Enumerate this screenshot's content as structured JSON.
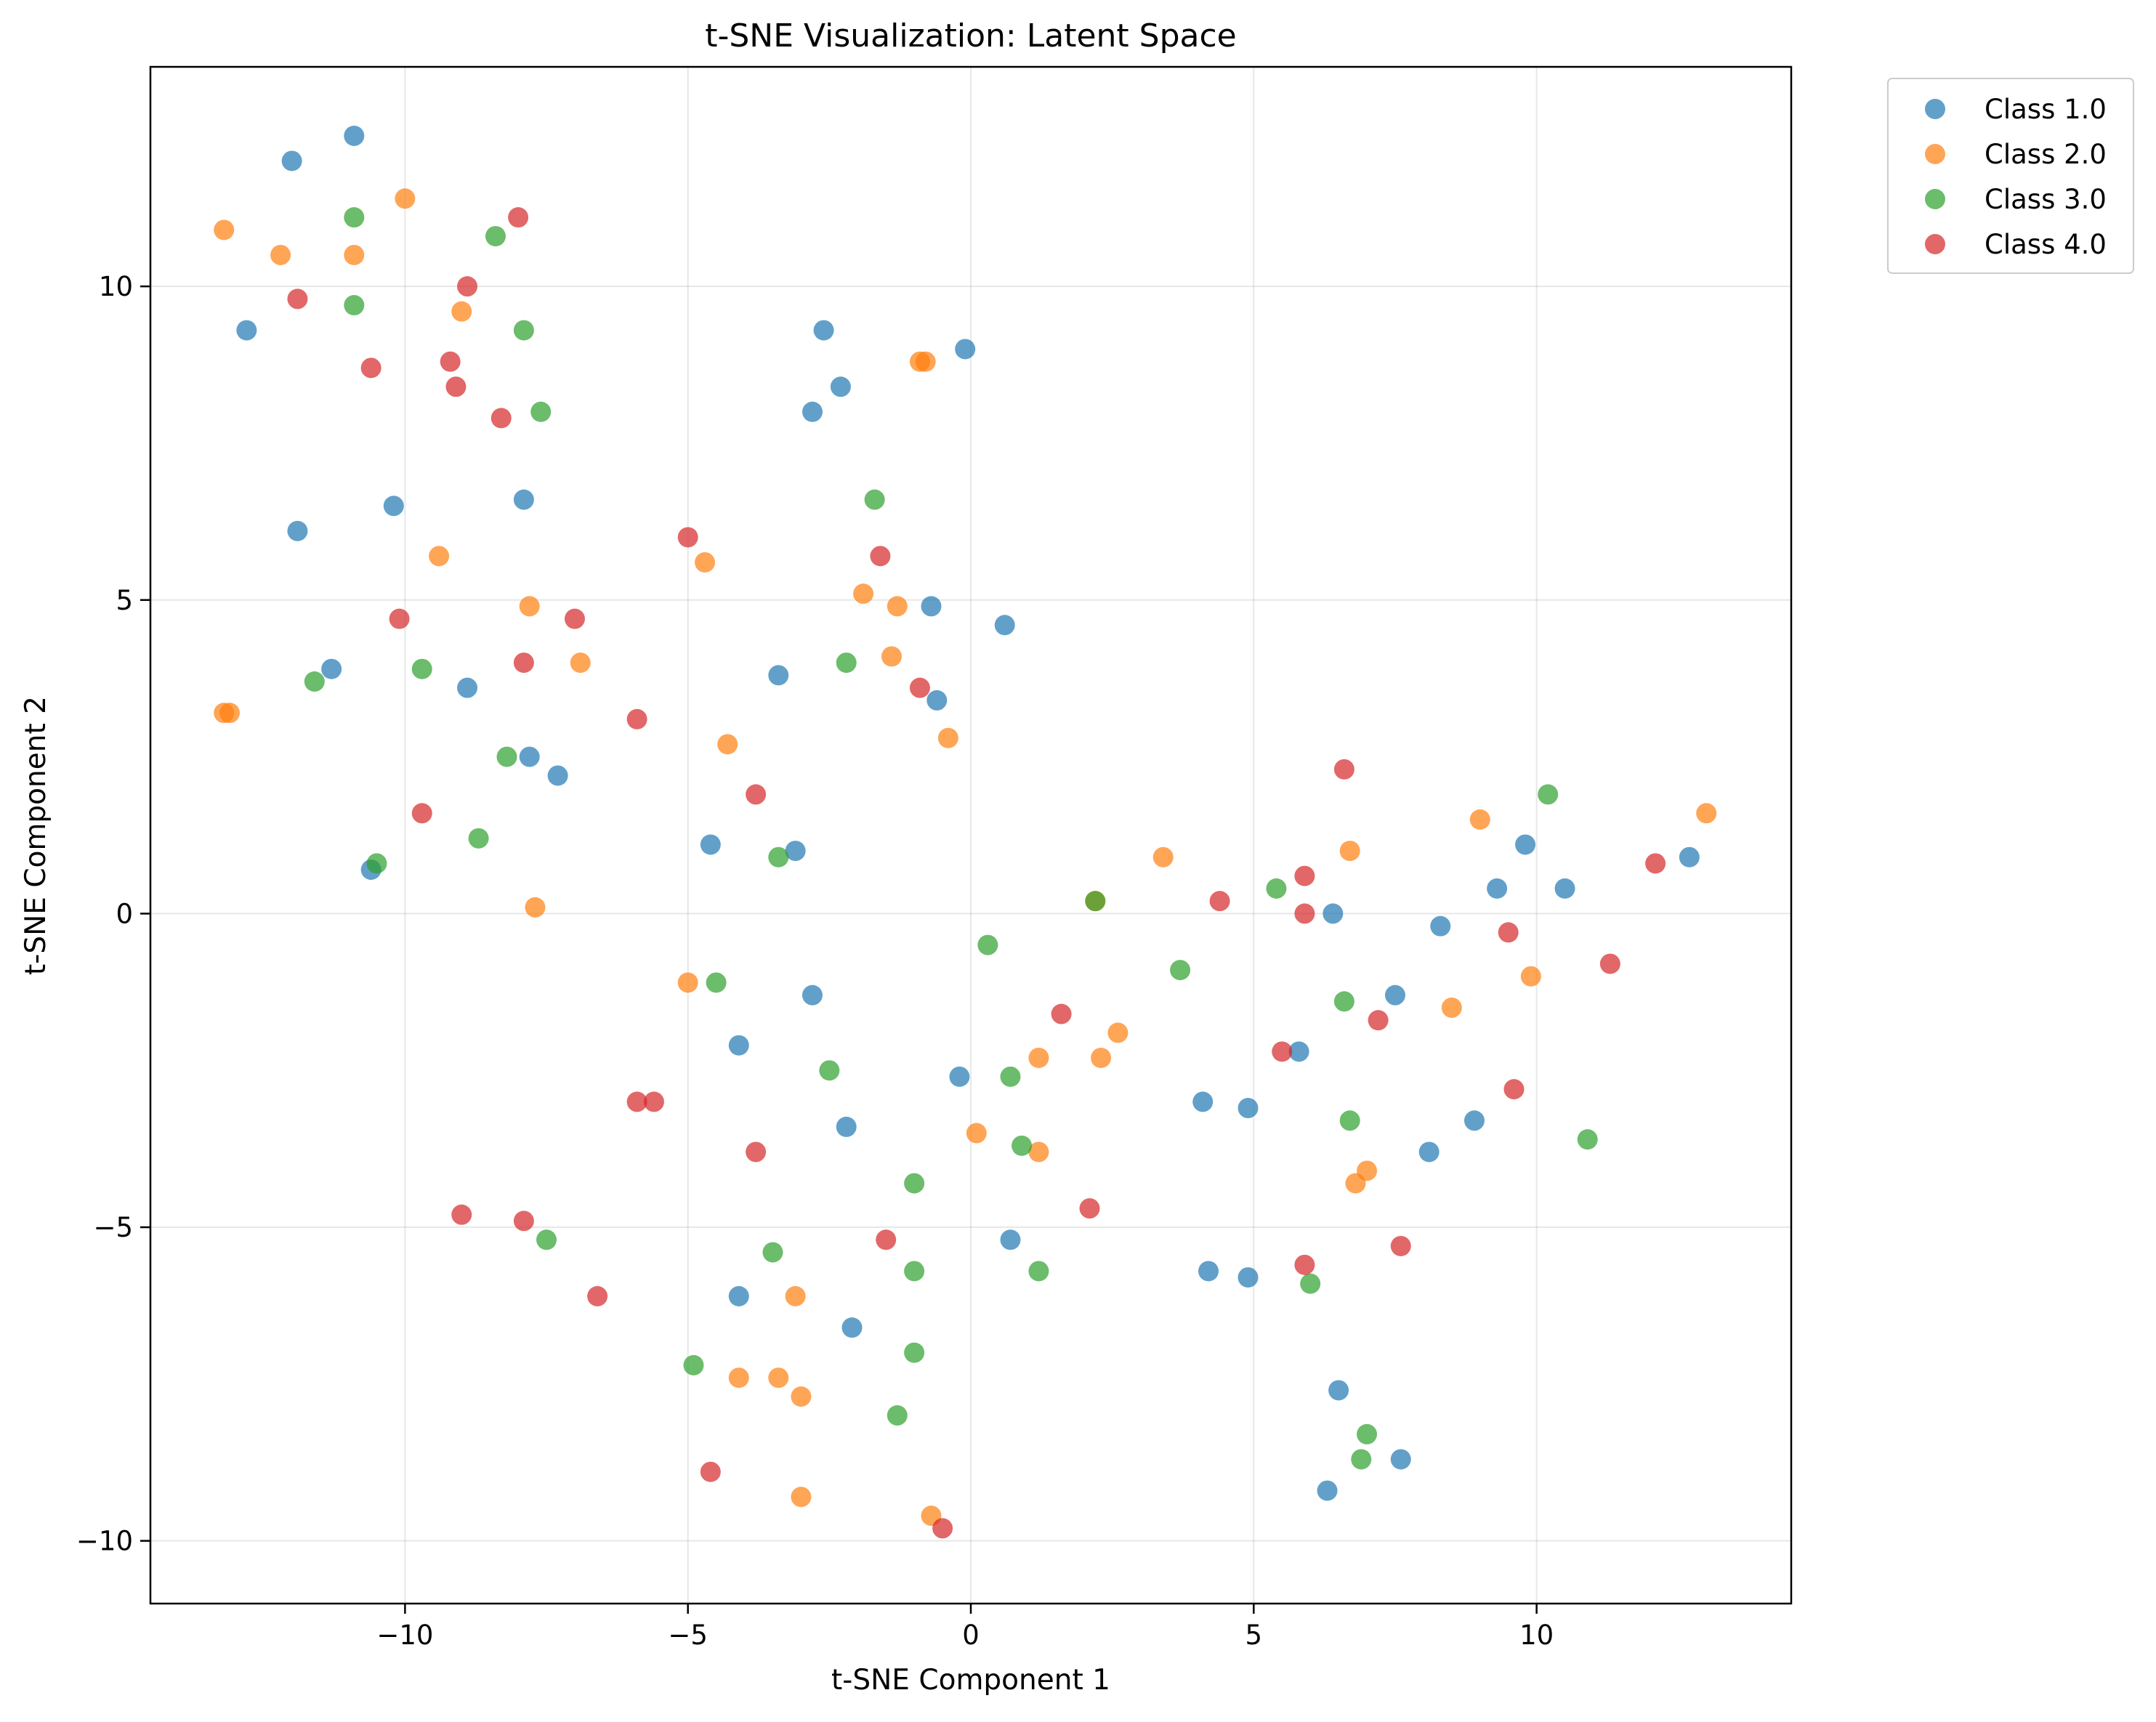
{
  "chart_data": {
    "type": "scatter",
    "title": "t-SNE Visualization: Latent Space",
    "xlabel": "t-SNE Component 1",
    "ylabel": "t-SNE Component 2",
    "xlim": [
      -14.5,
      14.5
    ],
    "ylim": [
      -11,
      13.5
    ],
    "xticks": [
      -10,
      -5,
      0,
      5,
      10
    ],
    "yticks": [
      -10,
      -5,
      0,
      5,
      10
    ],
    "grid": true,
    "legend_position": "outside-top-right",
    "series": [
      {
        "name": "Class 1.0",
        "color": "#1f77b4",
        "points": [
          [
            -10.9,
            12.4
          ],
          [
            -12.0,
            12.0
          ],
          [
            -12.8,
            9.3
          ],
          [
            -11.9,
            6.1
          ],
          [
            -10.2,
            6.5
          ],
          [
            -7.9,
            6.6
          ],
          [
            -11.3,
            3.9
          ],
          [
            -8.9,
            3.6
          ],
          [
            -7.8,
            2.5
          ],
          [
            -7.3,
            2.2
          ],
          [
            -10.6,
            0.7
          ],
          [
            -2.6,
            9.3
          ],
          [
            -2.3,
            8.4
          ],
          [
            -2.8,
            8.0
          ],
          [
            -0.1,
            9.0
          ],
          [
            -0.7,
            4.9
          ],
          [
            0.6,
            4.6
          ],
          [
            -3.4,
            3.8
          ],
          [
            -0.6,
            3.4
          ],
          [
            -4.6,
            1.1
          ],
          [
            -3.1,
            1.0
          ],
          [
            -2.8,
            -1.3
          ],
          [
            -4.1,
            -2.1
          ],
          [
            -2.2,
            -3.4
          ],
          [
            -0.2,
            -2.6
          ],
          [
            0.7,
            -5.2
          ],
          [
            -4.1,
            -6.1
          ],
          [
            -2.1,
            -6.6
          ],
          [
            4.1,
            -3.0
          ],
          [
            4.9,
            -3.1
          ],
          [
            4.2,
            -5.7
          ],
          [
            4.9,
            -5.8
          ],
          [
            5.8,
            -2.2
          ],
          [
            6.4,
            0.0
          ],
          [
            7.5,
            -1.3
          ],
          [
            8.3,
            -0.2
          ],
          [
            8.1,
            -3.8
          ],
          [
            8.9,
            -3.3
          ],
          [
            9.3,
            0.4
          ],
          [
            9.8,
            1.1
          ],
          [
            10.5,
            0.4
          ],
          [
            12.7,
            0.9
          ],
          [
            6.5,
            -7.6
          ],
          [
            7.6,
            -8.7
          ],
          [
            6.3,
            -9.2
          ]
        ]
      },
      {
        "name": "Class 2.0",
        "color": "#ff7f0e",
        "points": [
          [
            -13.2,
            10.9
          ],
          [
            -12.2,
            10.5
          ],
          [
            -10.9,
            10.5
          ],
          [
            -10.0,
            11.4
          ],
          [
            -9.0,
            9.6
          ],
          [
            -9.4,
            5.7
          ],
          [
            -7.8,
            4.9
          ],
          [
            -6.9,
            4.0
          ],
          [
            -13.1,
            3.2
          ],
          [
            -13.2,
            3.2
          ],
          [
            -7.7,
            0.1
          ],
          [
            -0.9,
            8.8
          ],
          [
            -0.8,
            8.8
          ],
          [
            -4.7,
            5.6
          ],
          [
            -1.9,
            5.1
          ],
          [
            -1.3,
            4.9
          ],
          [
            -1.4,
            4.1
          ],
          [
            -4.3,
            2.7
          ],
          [
            -0.4,
            2.8
          ],
          [
            -5.0,
            -1.1
          ],
          [
            0.1,
            -3.5
          ],
          [
            1.2,
            -2.3
          ],
          [
            1.2,
            -3.8
          ],
          [
            2.3,
            -2.3
          ],
          [
            2.6,
            -1.9
          ],
          [
            2.2,
            0.2
          ],
          [
            3.4,
            0.9
          ],
          [
            -3.1,
            -6.1
          ],
          [
            -4.1,
            -7.4
          ],
          [
            -3.4,
            -7.4
          ],
          [
            -3.0,
            -7.7
          ],
          [
            -3.0,
            -9.3
          ],
          [
            -0.7,
            -9.6
          ],
          [
            6.7,
            1.0
          ],
          [
            8.5,
            -1.5
          ],
          [
            9.0,
            1.5
          ],
          [
            9.9,
            -1.0
          ],
          [
            7.0,
            -4.1
          ],
          [
            6.8,
            -4.3
          ],
          [
            13.0,
            1.6
          ]
        ]
      },
      {
        "name": "Class 3.0",
        "color": "#2ca02c",
        "points": [
          [
            -10.9,
            11.1
          ],
          [
            -10.9,
            9.7
          ],
          [
            -8.4,
            10.8
          ],
          [
            -7.9,
            9.3
          ],
          [
            -7.6,
            8.0
          ],
          [
            -11.6,
            3.7
          ],
          [
            -9.7,
            3.9
          ],
          [
            -8.2,
            2.5
          ],
          [
            -8.7,
            1.2
          ],
          [
            -10.5,
            0.8
          ],
          [
            -1.7,
            6.6
          ],
          [
            -2.2,
            4.0
          ],
          [
            -3.4,
            0.9
          ],
          [
            -4.5,
            -1.1
          ],
          [
            -2.5,
            -2.5
          ],
          [
            0.3,
            -0.5
          ],
          [
            0.7,
            -2.6
          ],
          [
            0.9,
            -3.7
          ],
          [
            2.2,
            0.2
          ],
          [
            3.7,
            -0.9
          ],
          [
            5.4,
            0.4
          ],
          [
            6.6,
            -1.4
          ],
          [
            6.7,
            -3.3
          ],
          [
            -1.0,
            -4.3
          ],
          [
            -1.0,
            -5.7
          ],
          [
            1.2,
            -5.7
          ],
          [
            -3.5,
            -5.4
          ],
          [
            -7.5,
            -5.2
          ],
          [
            -1.0,
            -7.0
          ],
          [
            -4.9,
            -7.2
          ],
          [
            -1.3,
            -8.0
          ],
          [
            6.0,
            -5.9
          ],
          [
            7.0,
            -8.3
          ],
          [
            6.9,
            -8.7
          ],
          [
            10.2,
            1.9
          ],
          [
            10.9,
            -3.6
          ]
        ]
      },
      {
        "name": "Class 4.0",
        "color": "#d62728",
        "points": [
          [
            -11.9,
            9.8
          ],
          [
            -8.0,
            11.1
          ],
          [
            -8.9,
            10.0
          ],
          [
            -9.2,
            8.8
          ],
          [
            -9.1,
            8.4
          ],
          [
            -10.6,
            8.7
          ],
          [
            -8.3,
            7.9
          ],
          [
            -10.1,
            4.7
          ],
          [
            -7.9,
            4.0
          ],
          [
            -7.0,
            4.7
          ],
          [
            -5.9,
            3.1
          ],
          [
            -9.7,
            1.6
          ],
          [
            -5.0,
            6.0
          ],
          [
            -1.6,
            5.7
          ],
          [
            -0.9,
            3.6
          ],
          [
            -3.8,
            1.9
          ],
          [
            -5.9,
            -3.0
          ],
          [
            -5.6,
            -3.0
          ],
          [
            -3.8,
            -3.8
          ],
          [
            -1.5,
            -5.2
          ],
          [
            1.6,
            -1.6
          ],
          [
            2.1,
            -4.7
          ],
          [
            -9.0,
            -4.8
          ],
          [
            -7.9,
            -4.9
          ],
          [
            -6.6,
            -6.1
          ],
          [
            -4.6,
            -8.9
          ],
          [
            -0.5,
            -9.8
          ],
          [
            4.4,
            0.2
          ],
          [
            5.9,
            0.6
          ],
          [
            5.9,
            0.0
          ],
          [
            6.6,
            2.3
          ],
          [
            5.5,
            -2.2
          ],
          [
            7.2,
            -1.7
          ],
          [
            9.5,
            -0.3
          ],
          [
            9.6,
            -2.8
          ],
          [
            11.3,
            -0.8
          ],
          [
            12.1,
            0.8
          ],
          [
            5.9,
            -5.6
          ],
          [
            7.6,
            -5.3
          ]
        ]
      }
    ]
  }
}
